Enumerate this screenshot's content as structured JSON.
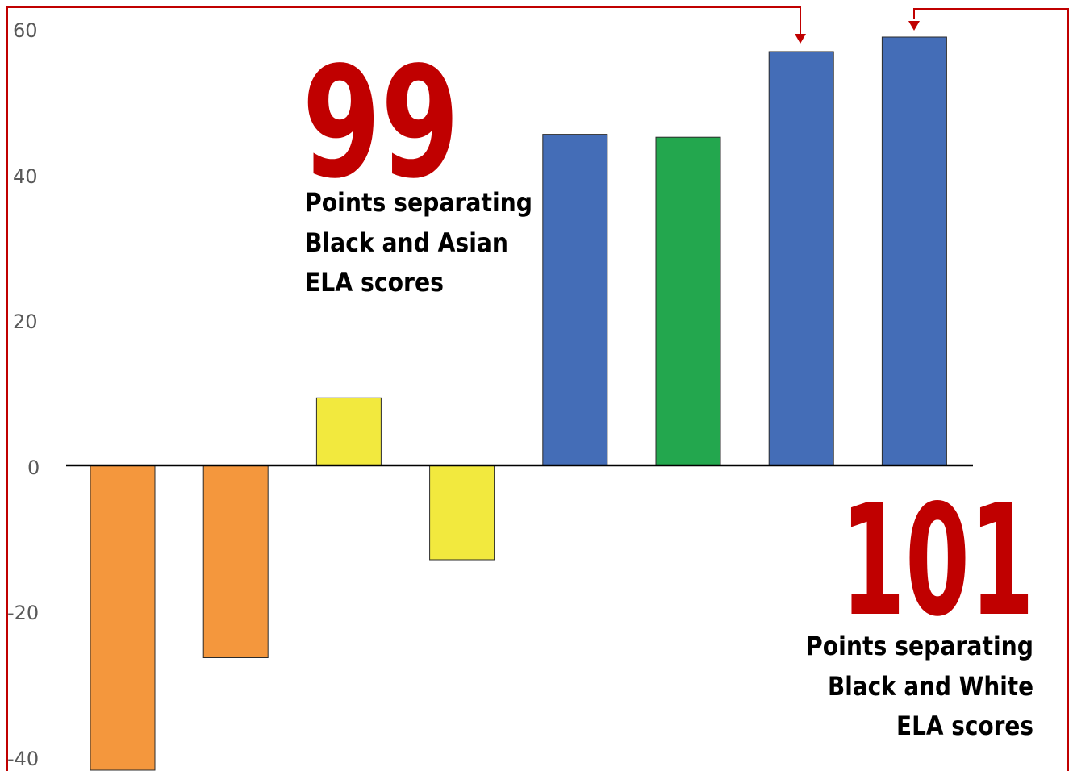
{
  "chart_data": {
    "type": "bar",
    "title": "",
    "xlabel": "",
    "ylabel": "",
    "ylim": [
      -40,
      60
    ],
    "yticks": [
      "60",
      "40",
      "20",
      "0",
      "-20",
      "-40"
    ],
    "grid": false,
    "values": [
      -42,
      -26.5,
      9.3,
      -13,
      45.6,
      45.2,
      57,
      59
    ],
    "colors": [
      "#f4973d",
      "#f4973d",
      "#f2e93e",
      "#f2e93e",
      "#446db7",
      "#23a74e",
      "#446db7",
      "#446db7"
    ],
    "annotations": [
      {
        "number": "99",
        "lines": [
          "Points separating",
          "Black and Asian",
          "ELA scores"
        ]
      },
      {
        "number": "101",
        "lines": [
          "Points separating",
          "Black and White",
          "ELA scores"
        ]
      }
    ]
  },
  "colors": {
    "frame": "#c00000",
    "number": "#c00000",
    "caption": "#000000",
    "axis": "#000000"
  }
}
